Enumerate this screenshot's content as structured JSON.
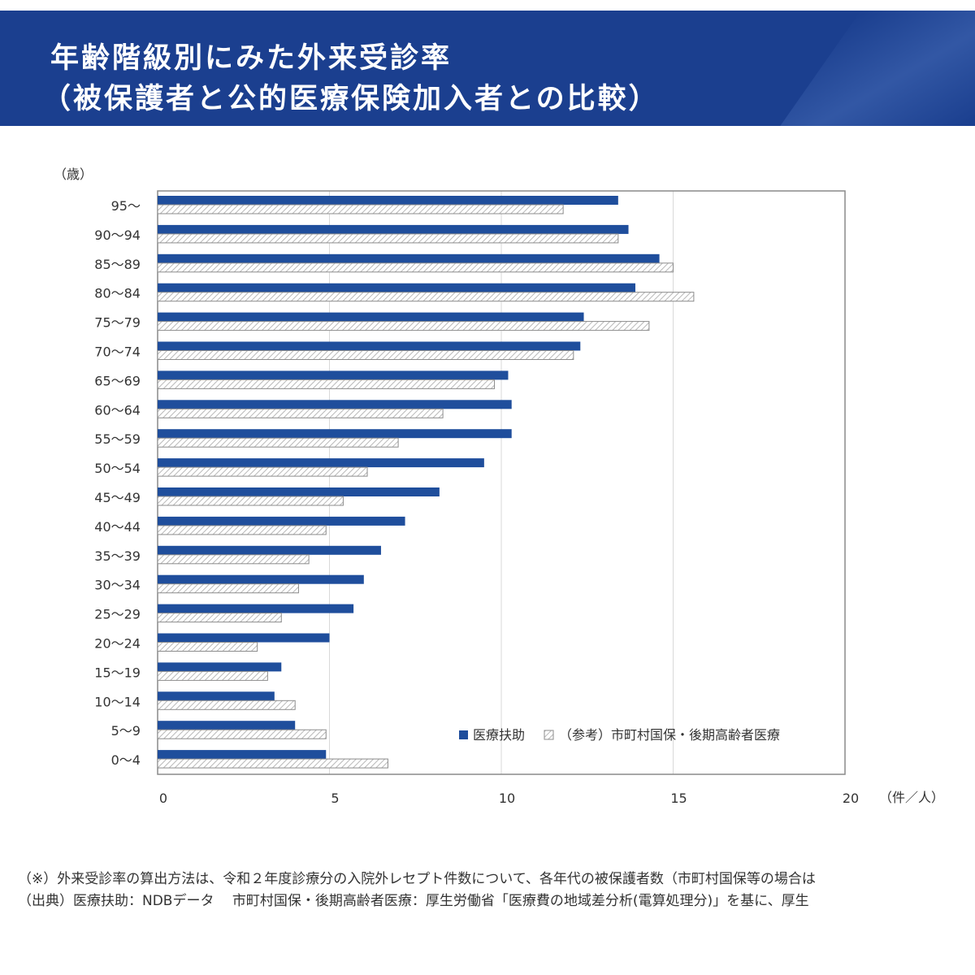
{
  "header": {
    "title_line1": "年齢階級別にみた外来受診率",
    "title_line2": "（被保護者と公的医療保険加入者との比較）"
  },
  "colors": {
    "header_bg": "#1b3f8f",
    "series_primary": "#1f4e9c",
    "series_reference_stroke": "#8c8c8c",
    "grid": "#d9d9d9"
  },
  "chart_data": {
    "type": "bar",
    "orientation": "horizontal",
    "y_unit_label": "（歳）",
    "x_unit_label": "（件／人）",
    "xlim": [
      0,
      20
    ],
    "x_ticks": [
      0,
      5,
      10,
      15,
      20
    ],
    "grid": true,
    "legend_position": "bottom-right",
    "categories": [
      "95〜",
      "90〜94",
      "85〜89",
      "80〜84",
      "75〜79",
      "70〜74",
      "65〜69",
      "60〜64",
      "55〜59",
      "50〜54",
      "45〜49",
      "40〜44",
      "35〜39",
      "30〜34",
      "25〜29",
      "20〜24",
      "15〜19",
      "10〜14",
      "5〜9",
      "0〜4"
    ],
    "series": [
      {
        "name": "医療扶助",
        "values": [
          13.4,
          13.7,
          14.6,
          13.9,
          12.4,
          12.3,
          10.2,
          10.3,
          10.3,
          9.5,
          8.2,
          7.2,
          6.5,
          6.0,
          5.7,
          5.0,
          3.6,
          3.4,
          4.0,
          4.9
        ]
      },
      {
        "name": "（参考）市町村国保・後期高齢者医療",
        "values": [
          11.8,
          13.4,
          15.0,
          15.6,
          14.3,
          12.1,
          9.8,
          8.3,
          7.0,
          6.1,
          5.4,
          4.9,
          4.4,
          4.1,
          3.6,
          2.9,
          3.2,
          4.0,
          4.9,
          6.7
        ]
      }
    ]
  },
  "footnotes": {
    "note1": "（※）外来受診率の算出方法は、令和２年度診療分の入院外レセプト件数について、各年代の被保護者数（市町村国保等の場合は",
    "note2": "（出典）医療扶助：NDBデータ　 市町村国保・後期高齢者医療：厚生労働省「医療費の地域差分析(電算処理分)」を基に、厚生"
  }
}
